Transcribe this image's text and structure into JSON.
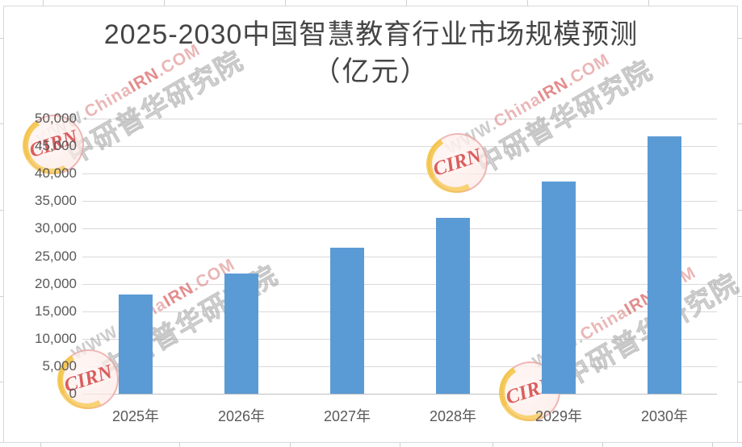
{
  "chart_data": {
    "type": "bar",
    "title": "2025-2030中国智慧教育行业市场规模预测",
    "subtitle": "（亿元）",
    "categories": [
      "2025年",
      "2026年",
      "2027年",
      "2028年",
      "2029年",
      "2030年"
    ],
    "values": [
      18100,
      21800,
      26500,
      31900,
      38500,
      46800
    ],
    "xlabel": "",
    "ylabel": "",
    "ylim": [
      0,
      50000
    ],
    "ytick_step": 5000,
    "y_tick_labels": [
      "0",
      "5,000",
      "10,000",
      "15,000",
      "20,000",
      "25,000",
      "30,000",
      "35,000",
      "40,000",
      "45,000",
      "50,000"
    ],
    "grid": true,
    "legend": "none",
    "bar_color": "#5B9BD5",
    "gridline_color": "#D9D9D9",
    "label_color": "#595959"
  },
  "watermark": {
    "url_prefix": "WWW.",
    "url_mid": "China",
    "url_highlight": "IRN",
    "url_suffix": ".COM",
    "org_name": "中研普华研究院",
    "badge_label": "CIRN",
    "colors": {
      "red": "#D24646",
      "gray": "#969696",
      "yellow": "#F4C440"
    }
  }
}
